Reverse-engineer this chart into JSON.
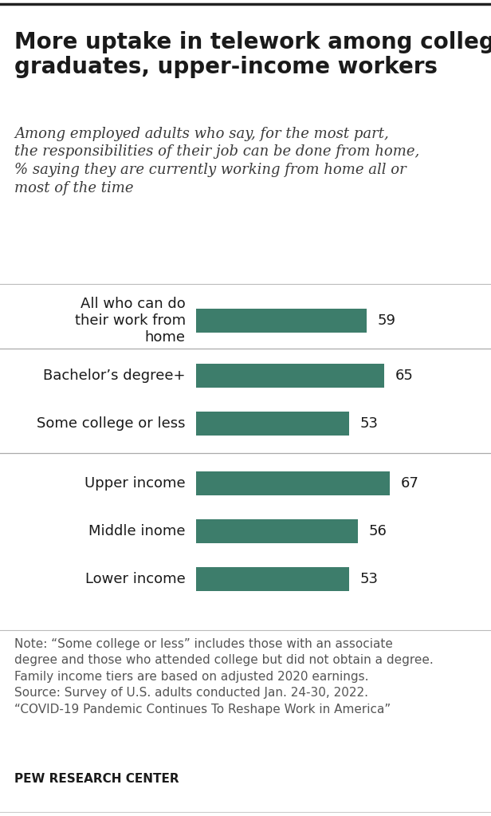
{
  "title": "More uptake in telework among college\ngraduates, upper-income workers",
  "subtitle": "Among employed adults who say, for the most part,\nthe responsibilities of their job can be done from home,\n% saying they are currently working from home all or\nmost of the time",
  "categories": [
    "All who can do\ntheir work from\nhome",
    "Bachelor’s degree+",
    "Some college or less",
    "Upper income",
    "Middle inome",
    "Lower income"
  ],
  "values": [
    59,
    65,
    53,
    67,
    56,
    53
  ],
  "bar_color": "#3d7d6b",
  "note": "Note: “Some college or less” includes those with an associate\ndegree and those who attended college but did not obtain a degree.\nFamily income tiers are based on adjusted 2020 earnings.\nSource: Survey of U.S. adults conducted Jan. 24-30, 2022.\n“COVID-19 Pandemic Continues To Reshape Work in America”",
  "source_bold": "PEW RESEARCH CENTER",
  "xlim_max": 85,
  "background_color": "#ffffff",
  "title_fontsize": 20,
  "subtitle_fontsize": 13,
  "label_fontsize": 13,
  "value_fontsize": 13,
  "note_fontsize": 11
}
